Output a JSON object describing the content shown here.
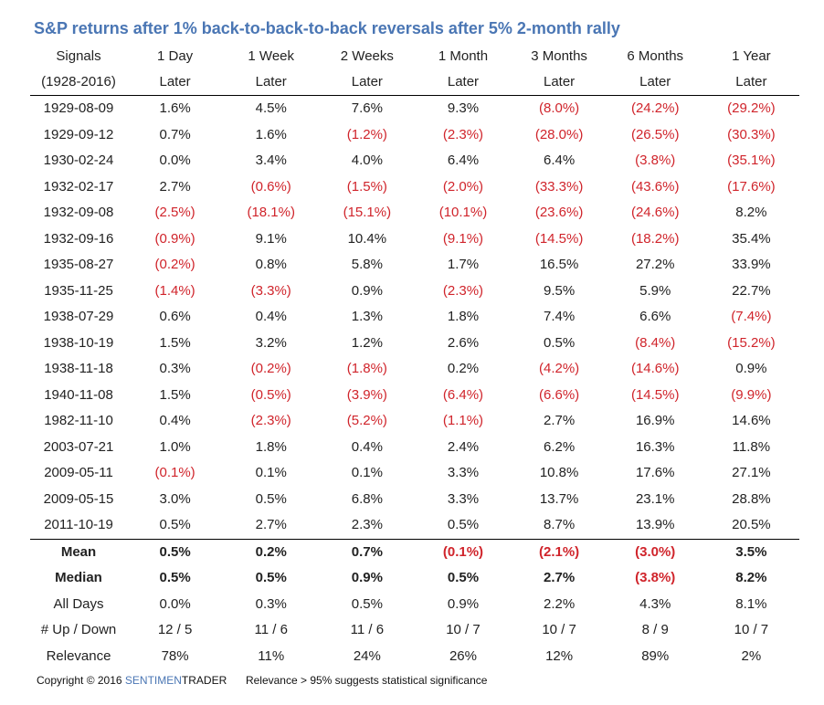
{
  "title": "S&P returns after 1% back-to-back-to-back reversals after 5% 2-month rally",
  "colors": {
    "title": "#4a76b4",
    "negative": "#d0242b",
    "text": "#222222"
  },
  "chart_data": {
    "type": "table",
    "title": "S&P returns after 1% back-to-back-to-back reversals after 5% 2-month rally",
    "header_row1": [
      "Signals",
      "1 Day",
      "1 Week",
      "2 Weeks",
      "1 Month",
      "3 Months",
      "6 Months",
      "1 Year"
    ],
    "header_row2": [
      "(1928-2016)",
      "Later",
      "Later",
      "Later",
      "Later",
      "Later",
      "Later",
      "Later"
    ],
    "rows": [
      [
        "1929-08-09",
        "1.6%",
        "4.5%",
        "7.6%",
        "9.3%",
        "(8.0%)",
        "(24.2%)",
        "(29.2%)"
      ],
      [
        "1929-09-12",
        "0.7%",
        "1.6%",
        "(1.2%)",
        "(2.3%)",
        "(28.0%)",
        "(26.5%)",
        "(30.3%)"
      ],
      [
        "1930-02-24",
        "0.0%",
        "3.4%",
        "4.0%",
        "6.4%",
        "6.4%",
        "(3.8%)",
        "(35.1%)"
      ],
      [
        "1932-02-17",
        "2.7%",
        "(0.6%)",
        "(1.5%)",
        "(2.0%)",
        "(33.3%)",
        "(43.6%)",
        "(17.6%)"
      ],
      [
        "1932-09-08",
        "(2.5%)",
        "(18.1%)",
        "(15.1%)",
        "(10.1%)",
        "(23.6%)",
        "(24.6%)",
        "8.2%"
      ],
      [
        "1932-09-16",
        "(0.9%)",
        "9.1%",
        "10.4%",
        "(9.1%)",
        "(14.5%)",
        "(18.2%)",
        "35.4%"
      ],
      [
        "1935-08-27",
        "(0.2%)",
        "0.8%",
        "5.8%",
        "1.7%",
        "16.5%",
        "27.2%",
        "33.9%"
      ],
      [
        "1935-11-25",
        "(1.4%)",
        "(3.3%)",
        "0.9%",
        "(2.3%)",
        "9.5%",
        "5.9%",
        "22.7%"
      ],
      [
        "1938-07-29",
        "0.6%",
        "0.4%",
        "1.3%",
        "1.8%",
        "7.4%",
        "6.6%",
        "(7.4%)"
      ],
      [
        "1938-10-19",
        "1.5%",
        "3.2%",
        "1.2%",
        "2.6%",
        "0.5%",
        "(8.4%)",
        "(15.2%)"
      ],
      [
        "1938-11-18",
        "0.3%",
        "(0.2%)",
        "(1.8%)",
        "0.2%",
        "(4.2%)",
        "(14.6%)",
        "0.9%"
      ],
      [
        "1940-11-08",
        "1.5%",
        "(0.5%)",
        "(3.9%)",
        "(6.4%)",
        "(6.6%)",
        "(14.5%)",
        "(9.9%)"
      ],
      [
        "1982-11-10",
        "0.4%",
        "(2.3%)",
        "(5.2%)",
        "(1.1%)",
        "2.7%",
        "16.9%",
        "14.6%"
      ],
      [
        "2003-07-21",
        "1.0%",
        "1.8%",
        "0.4%",
        "2.4%",
        "6.2%",
        "16.3%",
        "11.8%"
      ],
      [
        "2009-05-11",
        "(0.1%)",
        "0.1%",
        "0.1%",
        "3.3%",
        "10.8%",
        "17.6%",
        "27.1%"
      ],
      [
        "2009-05-15",
        "3.0%",
        "0.5%",
        "6.8%",
        "3.3%",
        "13.7%",
        "23.1%",
        "28.8%"
      ],
      [
        "2011-10-19",
        "0.5%",
        "2.7%",
        "2.3%",
        "0.5%",
        "8.7%",
        "13.9%",
        "20.5%"
      ]
    ],
    "summary_rows": [
      {
        "bold": true,
        "cells": [
          "Mean",
          "0.5%",
          "0.2%",
          "0.7%",
          "(0.1%)",
          "(2.1%)",
          "(3.0%)",
          "3.5%"
        ]
      },
      {
        "bold": true,
        "cells": [
          "Median",
          "0.5%",
          "0.5%",
          "0.9%",
          "0.5%",
          "2.7%",
          "(3.8%)",
          "8.2%"
        ]
      },
      {
        "bold": false,
        "cells": [
          "All Days",
          "0.0%",
          "0.3%",
          "0.5%",
          "0.9%",
          "2.2%",
          "4.3%",
          "8.1%"
        ]
      },
      {
        "bold": false,
        "cells": [
          "# Up / Down",
          "12 / 5",
          "11 / 6",
          "11 / 6",
          "10 / 7",
          "10 / 7",
          "8 / 9",
          "10 / 7"
        ]
      },
      {
        "bold": false,
        "cells": [
          "Relevance",
          "78%",
          "11%",
          "24%",
          "26%",
          "12%",
          "89%",
          "2%"
        ]
      }
    ]
  },
  "footer": {
    "copyright": "Copyright © 2016",
    "brand_part1": "SENTIMEN",
    "brand_part2": "TRADER",
    "note": "Relevance > 95% suggests statistical significance"
  }
}
